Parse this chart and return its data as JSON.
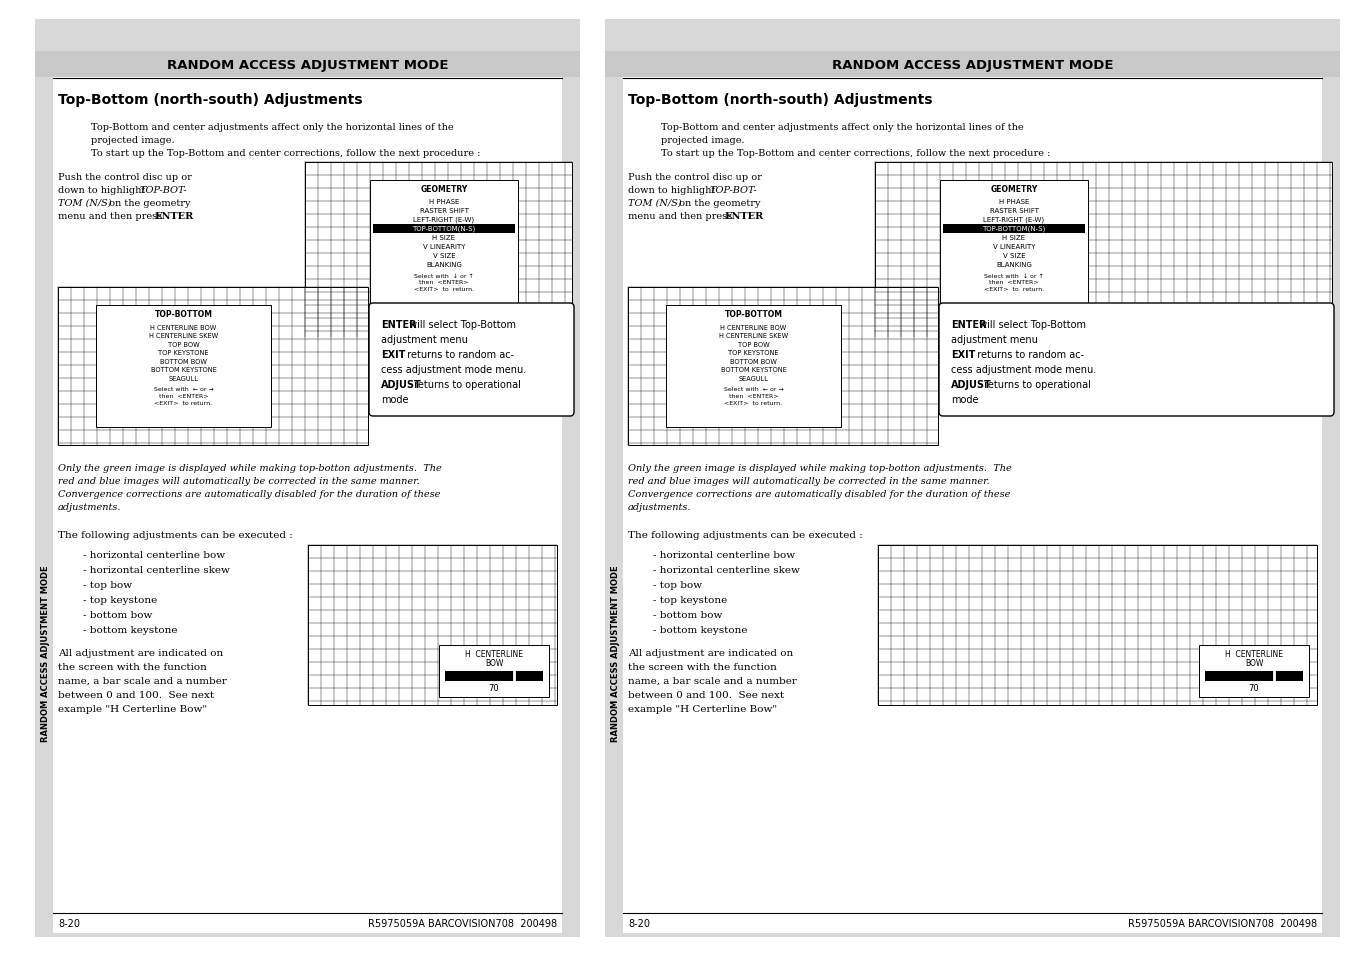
{
  "title": "RANDOM ACCESS ADJUSTMENT MODE",
  "subtitle": "Top-Bottom (north-south) Adjustments",
  "bg_color": "#e0e0e0",
  "page_bg": "#ffffff",
  "header_bg": "#c8c8c8",
  "para1_line1": "Top-Bottom and center adjustments affect only the horizontal lines of the",
  "para1_line2": "projected image.",
  "para1_line3": "To start up the Top-Bottom and center corrections, follow the next procedure :",
  "para2_lines": [
    "Push the control disc up or",
    "down to highlight TOP-BOT-",
    "TOM (N/S) on the geometry",
    "menu and then press ENTER."
  ],
  "para2_italic_indices": [
    1,
    2
  ],
  "geometry_title": "GEOMETRY",
  "geometry_items": [
    "H PHASE",
    "RASTER SHIFT",
    "LEFT-RIGHT (E-W)",
    "TOP-BOTTOM(N-S)",
    "H SIZE",
    "V LINEARITY",
    "V SIZE",
    "BLANKING"
  ],
  "geometry_selected": "TOP-BOTTOM(N-S)",
  "topbottom_title": "TOP-BOTTOM",
  "topbottom_items": [
    "H CENTERLINE BOW",
    "H CENTERLINE SKEW",
    "TOP BOW",
    "TOP KEYSTONE",
    "BOTTOM BOW",
    "BOTTOM KEYSTONE",
    "SEAGULL"
  ],
  "enter_lines": [
    "ENTER will select Top-Bottom",
    "adjustment menu",
    "EXIT  returns to random ac-",
    "cess adjustment mode menu.",
    "ADJUST returns to operational",
    "mode"
  ],
  "enter_bold": [
    0,
    2,
    4
  ],
  "italic_lines": [
    "Only the green image is displayed while making top-botton adjustments.  The",
    "red and blue images will automatically be corrected in the same manner.",
    "Convergence corrections are automatically disabled for the duration of these",
    "adjustments."
  ],
  "list_title": "The following adjustments can be executed :",
  "list_items": [
    "horizontal centerline bow",
    "horizontal centerline skew",
    "top bow",
    "top keystone",
    "bottom bow",
    "bottom keystone"
  ],
  "all_adjust_lines": [
    "All adjustment are indicated on",
    "the screen with the function",
    "name, a bar scale and a number",
    "between 0 and 100.  See next",
    "example \"H Certerline Bow\""
  ],
  "hcl_title1": "H  CENTERLINE",
  "hcl_title2": "BOW",
  "bar_value": "70",
  "footer_left": "8-20",
  "footer_right": "R5975059A BARCOVISION708  200498",
  "side_text": "RANDOM ACCESS ADJUSTMENT MODE"
}
